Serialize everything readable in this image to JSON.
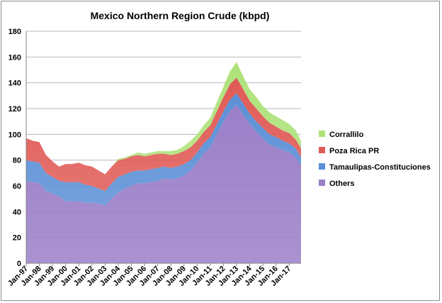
{
  "chart_data": {
    "type": "area",
    "stacked": true,
    "title": "Mexico Northern Region Crude (kbpd)",
    "xlabel": "",
    "ylabel": "",
    "ylim": [
      0,
      180
    ],
    "yticks": [
      0,
      20,
      40,
      60,
      80,
      100,
      120,
      140,
      160,
      180
    ],
    "x_tick_labels": [
      "Jan-97",
      "Jan-98",
      "Jan-99",
      "Jan-00",
      "Jan-01",
      "Jan-02",
      "Jan-03",
      "Jan-04",
      "Jan-05",
      "Jan-06",
      "Jan-07",
      "Jan-08",
      "Jan-09",
      "Jan-10",
      "Jan-11",
      "Jan-12",
      "Jan-13",
      "Jan-14",
      "Jan-15",
      "Jan-16",
      "Jan-17"
    ],
    "x": [
      1997.0,
      1997.5,
      1998.0,
      1998.5,
      1999.0,
      1999.5,
      2000.0,
      2000.5,
      2001.0,
      2001.5,
      2002.0,
      2002.5,
      2003.0,
      2003.5,
      2004.0,
      2004.5,
      2005.0,
      2005.5,
      2006.0,
      2006.5,
      2007.0,
      2007.5,
      2008.0,
      2008.5,
      2009.0,
      2009.5,
      2010.0,
      2010.5,
      2011.0,
      2011.5,
      2012.0,
      2012.5,
      2013.0,
      2013.5,
      2014.0,
      2014.5,
      2015.0,
      2015.5,
      2016.0,
      2016.5,
      2017.0,
      2017.5,
      2017.9
    ],
    "grid": "horizontal",
    "legend_position": "right",
    "series": [
      {
        "name": "Others",
        "color": "#9b7fc8",
        "values": [
          64,
          63,
          62,
          56,
          54,
          52,
          48,
          48,
          48,
          47,
          47,
          46,
          45,
          50,
          55,
          58,
          60,
          62,
          62,
          63,
          64,
          66,
          65,
          66,
          68,
          72,
          78,
          85,
          90,
          100,
          110,
          118,
          123,
          115,
          108,
          102,
          97,
          92,
          90,
          88,
          86,
          82,
          76
        ]
      },
      {
        "name": "Tamaulipas-Constituciones",
        "color": "#5b8fd6",
        "values": [
          16,
          16,
          16,
          14,
          13,
          12,
          15,
          15,
          15,
          14,
          13,
          12,
          11,
          12,
          12,
          11,
          11,
          10,
          10,
          10,
          10,
          9,
          9,
          9,
          9,
          8,
          8,
          8,
          8,
          8,
          8,
          9,
          9,
          9,
          8,
          8,
          8,
          8,
          8,
          7,
          7,
          7,
          6
        ]
      },
      {
        "name": "Poza Rica PR",
        "color": "#e05a56",
        "values": [
          17,
          16,
          16,
          14,
          12,
          11,
          14,
          14,
          15,
          15,
          15,
          14,
          13,
          13,
          13,
          12,
          12,
          12,
          11,
          11,
          11,
          10,
          10,
          10,
          10,
          10,
          9,
          9,
          9,
          10,
          11,
          12,
          12,
          11,
          10,
          10,
          9,
          9,
          8,
          8,
          8,
          7,
          7
        ]
      },
      {
        "name": "Corrallilo",
        "color": "#aee27a",
        "values": [
          0,
          0,
          0,
          0,
          0,
          0,
          0,
          0,
          0,
          0,
          0,
          0,
          0,
          0,
          1,
          1,
          1,
          2,
          2,
          2,
          2,
          2,
          3,
          3,
          4,
          5,
          5,
          5,
          6,
          7,
          8,
          10,
          12,
          10,
          9,
          9,
          8,
          8,
          8,
          8,
          7,
          7,
          6
        ]
      }
    ]
  }
}
